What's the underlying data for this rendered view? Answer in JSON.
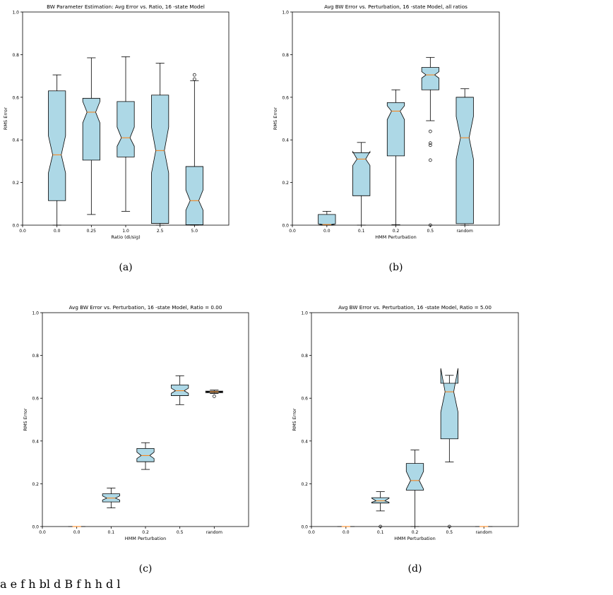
{
  "chart_data": [
    {
      "id": "a",
      "type": "box",
      "panel_label": "(a)",
      "title": "BW Parameter Estimation: Avg Error vs. Ratio,  16 -state Model",
      "xlabel": "Ratio (di/sig)",
      "ylabel": "RMS Error",
      "ylim": [
        0,
        1.0
      ],
      "yticks": [
        "0.0",
        "0.2",
        "0.4",
        "0.6",
        "0.8",
        "1.0"
      ],
      "xticks": [
        "0.0",
        "0.0",
        "0.25",
        "1.0",
        "2.5",
        "5.0"
      ],
      "notched": true,
      "box_color": "#add8e6",
      "median_color": "#ff7f0e",
      "boxes": [
        {
          "category": "0.0",
          "whisker_low": 0.0,
          "q1": 0.115,
          "median": 0.33,
          "q3": 0.63,
          "whisker_high": 0.705,
          "notch_low": 0.245,
          "notch_high": 0.42,
          "fliers": []
        },
        {
          "category": "0.25",
          "whisker_low": 0.05,
          "q1": 0.305,
          "median": 0.53,
          "q3": 0.595,
          "whisker_high": 0.785,
          "notch_low": 0.48,
          "notch_high": 0.58,
          "fliers": []
        },
        {
          "category": "1.0",
          "whisker_low": 0.065,
          "q1": 0.32,
          "median": 0.41,
          "q3": 0.58,
          "whisker_high": 0.79,
          "notch_low": 0.37,
          "notch_high": 0.46,
          "fliers": []
        },
        {
          "category": "2.5",
          "whisker_low": 0.0,
          "q1": 0.008,
          "median": 0.35,
          "q3": 0.61,
          "whisker_high": 0.76,
          "notch_low": 0.245,
          "notch_high": 0.46,
          "fliers": []
        },
        {
          "category": "5.0",
          "whisker_low": 0.0,
          "q1": 0.002,
          "median": 0.115,
          "q3": 0.275,
          "whisker_high": 0.678,
          "notch_low": 0.07,
          "notch_high": 0.165,
          "fliers": [
            0.705,
            0.685
          ]
        }
      ]
    },
    {
      "id": "b",
      "type": "box",
      "panel_label": "(b)",
      "title": "Avg BW Error vs. Perturbation,  16 -state Model, all ratios",
      "xlabel": "HMM Perturbation",
      "ylabel": "RMS Error",
      "ylim": [
        0,
        1.0
      ],
      "yticks": [
        "0.0",
        "0.2",
        "0.4",
        "0.6",
        "0.8",
        "1.0"
      ],
      "xticks": [
        "0.0",
        "0.0",
        "0.1",
        "0.2",
        "0.5",
        "random"
      ],
      "notched": true,
      "box_color": "#add8e6",
      "median_color": "#ff7f0e",
      "boxes": [
        {
          "category": "0.0",
          "whisker_low": 0.0,
          "q1": 0.0,
          "median": 0.003,
          "q3": 0.05,
          "whisker_high": 0.065,
          "notch_low": 0.0,
          "notch_high": 0.006,
          "fliers": []
        },
        {
          "category": "0.1",
          "whisker_low": 0.0,
          "q1": 0.138,
          "median": 0.31,
          "q3": 0.34,
          "whisker_high": 0.388,
          "notch_low": 0.28,
          "notch_high": 0.345,
          "fliers": []
        },
        {
          "category": "0.2",
          "whisker_low": 0.002,
          "q1": 0.325,
          "median": 0.535,
          "q3": 0.575,
          "whisker_high": 0.635,
          "notch_low": 0.495,
          "notch_high": 0.56,
          "fliers": []
        },
        {
          "category": "0.5",
          "whisker_low": 0.49,
          "q1": 0.635,
          "median": 0.705,
          "q3": 0.74,
          "whisker_high": 0.787,
          "notch_low": 0.69,
          "notch_high": 0.72,
          "fliers": [
            0.44,
            0.385,
            0.375,
            0.305,
            0.0
          ]
        },
        {
          "category": "random",
          "whisker_low": 0.0,
          "q1": 0.007,
          "median": 0.41,
          "q3": 0.6,
          "whisker_high": 0.64,
          "notch_low": 0.31,
          "notch_high": 0.51,
          "fliers": []
        }
      ]
    },
    {
      "id": "c",
      "type": "box",
      "panel_label": "(c)",
      "title": "Avg BW Error vs. Perturbation,  16 -state Model, Ratio =  0.00",
      "xlabel": "HMM Perturbation",
      "ylabel": "RMS Error",
      "ylim": [
        0,
        1.0
      ],
      "yticks": [
        "0.0",
        "0.2",
        "0.4",
        "0.6",
        "0.8",
        "1.0"
      ],
      "xticks": [
        "0.0",
        "0.0",
        "0.1",
        "0.2",
        "0.5",
        "random"
      ],
      "notched": true,
      "box_color": "#add8e6",
      "median_color": "#ff7f0e",
      "boxes": [
        {
          "category": "0.0",
          "whisker_low": 0.0,
          "q1": 0.0,
          "median": 0.0,
          "q3": 0.0,
          "whisker_high": 0.0,
          "notch_low": 0.0,
          "notch_high": 0.0,
          "fliers": []
        },
        {
          "category": "0.1",
          "whisker_low": 0.087,
          "q1": 0.115,
          "median": 0.133,
          "q3": 0.153,
          "whisker_high": 0.18,
          "notch_low": 0.124,
          "notch_high": 0.143,
          "fliers": []
        },
        {
          "category": "0.2",
          "whisker_low": 0.267,
          "q1": 0.303,
          "median": 0.332,
          "q3": 0.365,
          "whisker_high": 0.392,
          "notch_low": 0.318,
          "notch_high": 0.348,
          "fliers": []
        },
        {
          "category": "0.5",
          "whisker_low": 0.57,
          "q1": 0.612,
          "median": 0.635,
          "q3": 0.662,
          "whisker_high": 0.705,
          "notch_low": 0.623,
          "notch_high": 0.647,
          "fliers": []
        },
        {
          "category": "random",
          "whisker_low": 0.622,
          "q1": 0.626,
          "median": 0.63,
          "q3": 0.633,
          "whisker_high": 0.638,
          "notch_low": 0.628,
          "notch_high": 0.632,
          "fliers": [
            0.609
          ]
        }
      ]
    },
    {
      "id": "d",
      "type": "box",
      "panel_label": "(d)",
      "title": "Avg BW Error vs. Perturbation,  16 -state Model, Ratio =  5.00",
      "xlabel": "HMM Perturbation",
      "ylabel": "RMS Error",
      "ylim": [
        0,
        1.0
      ],
      "yticks": [
        "0.0",
        "0.2",
        "0.4",
        "0.6",
        "0.8",
        "1.0"
      ],
      "xticks": [
        "0.0",
        "0.0",
        "0.1",
        "0.2",
        "0.5",
        "random"
      ],
      "notched": true,
      "box_color": "#add8e6",
      "median_color": "#ff7f0e",
      "boxes": [
        {
          "category": "0.0",
          "whisker_low": 0.0,
          "q1": 0.0,
          "median": 0.0,
          "q3": 0.0,
          "whisker_high": 0.0,
          "notch_low": 0.0,
          "notch_high": 0.0,
          "fliers": []
        },
        {
          "category": "0.1",
          "whisker_low": 0.073,
          "q1": 0.11,
          "median": 0.12,
          "q3": 0.135,
          "whisker_high": 0.163,
          "notch_low": 0.114,
          "notch_high": 0.132,
          "fliers": [
            0.0
          ]
        },
        {
          "category": "0.2",
          "whisker_low": 0.0,
          "q1": 0.17,
          "median": 0.215,
          "q3": 0.295,
          "whisker_high": 0.358,
          "notch_low": 0.175,
          "notch_high": 0.258,
          "fliers": []
        },
        {
          "category": "0.5",
          "whisker_low": 0.302,
          "q1": 0.41,
          "median": 0.63,
          "q3": 0.67,
          "whisker_high": 0.707,
          "notch_low": 0.535,
          "notch_high": 0.74,
          "fliers": [
            0.0
          ]
        },
        {
          "category": "random",
          "whisker_low": 0.0,
          "q1": 0.0,
          "median": 0.0,
          "q3": 0.0,
          "whisker_high": 0.0,
          "notch_low": 0.0,
          "notch_high": 0.0,
          "fliers": []
        }
      ]
    }
  ],
  "caption": "a        e         f       h                bl           d     B                                    f                   h    h                 d                         l"
}
